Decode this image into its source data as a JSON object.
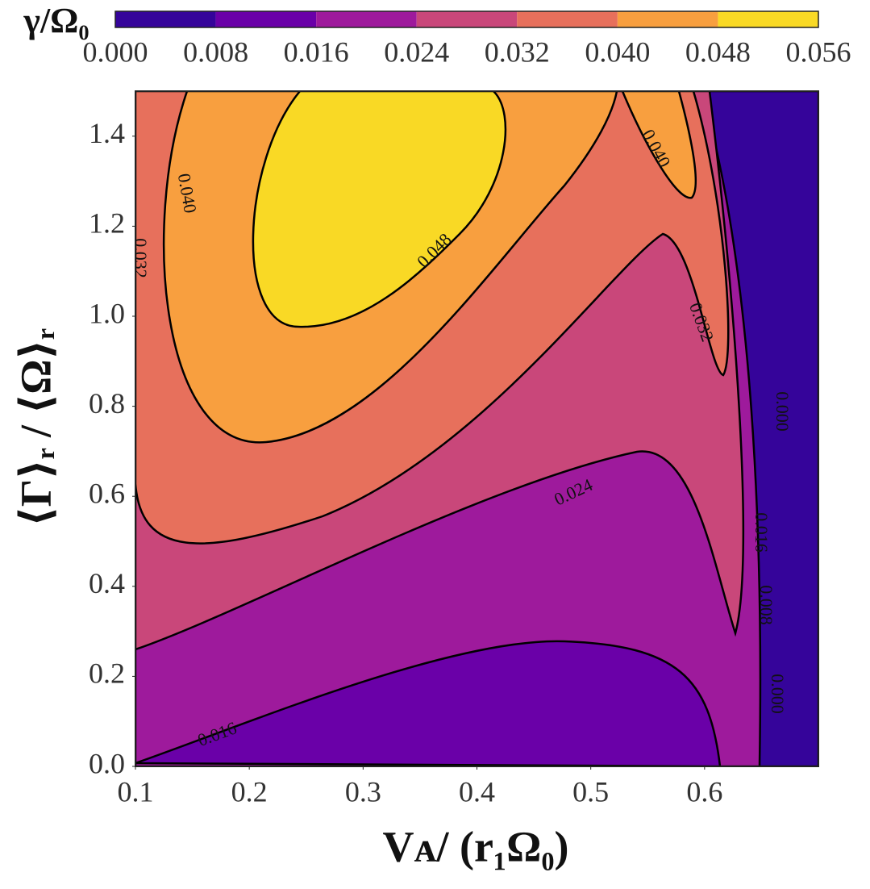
{
  "chart_data": {
    "type": "contour",
    "xlabel": "Vᴀ/ (r₁Ω₀)",
    "ylabel": "⟨Γ⟩ᵣ / ⟨Ω⟩ᵣ",
    "xlim": [
      0.1,
      0.7
    ],
    "xticks": [
      0.1,
      0.2,
      0.3,
      0.4,
      0.5,
      0.6
    ],
    "ylim": [
      0,
      1.5
    ],
    "yticks": [
      {
        "value": 0,
        "label": "0.0"
      },
      0.2,
      0.4,
      0.6,
      0.8,
      {
        "value": 1,
        "label": "1.0"
      },
      1.2,
      1.4
    ],
    "colorbar": {
      "label": "γ/Ω₀",
      "levels": [
        0,
        0.008,
        0.016,
        0.024,
        0.032,
        0.04,
        0.048,
        0.056
      ],
      "ticks": [
        {
          "value": 0,
          "label": "0.000"
        },
        {
          "value": 0.008,
          "label": "0.008"
        },
        {
          "value": 0.016,
          "label": "0.016"
        },
        {
          "value": 0.024,
          "label": "0.024"
        },
        {
          "value": 0.032,
          "label": "0.032"
        },
        {
          "value": 0.04,
          "label": "0.040"
        },
        {
          "value": 0.048,
          "label": "0.048"
        },
        {
          "value": 0.056,
          "label": "0.056"
        }
      ],
      "colors": [
        "#35049a",
        "#6a00a8",
        "#9e1a9c",
        "#c9477a",
        "#e7705c",
        "#f89f3f",
        "#f9d925"
      ]
    },
    "contour_labels": [
      {
        "value": 0.04,
        "label": "0.040"
      },
      {
        "value": 0.032,
        "label": "0.032"
      },
      {
        "value": 0.048,
        "label": "0.048"
      },
      {
        "value": 0.04,
        "label": "0.040"
      },
      {
        "value": 0.032,
        "label": "0.032"
      },
      {
        "value": 0.024,
        "label": "0.024"
      },
      {
        "value": 0.016,
        "label": "0.016"
      },
      {
        "value": 0.016,
        "label": "0.016"
      },
      {
        "value": 0.008,
        "label": "0.008"
      },
      {
        "value": 0,
        "label": "0.000"
      },
      {
        "value": 0,
        "label": "0.000"
      }
    ]
  }
}
